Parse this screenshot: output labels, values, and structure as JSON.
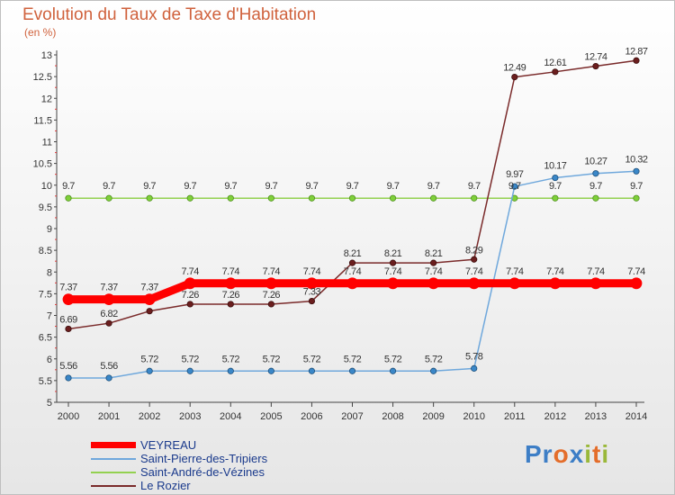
{
  "title": "Evolution du Taux de Taxe d'Habitation",
  "unit_label": "(en %)",
  "logo": {
    "parts": [
      {
        "text": "Pr",
        "color": "#3d7ec6"
      },
      {
        "text": "o",
        "color": "#e46d2a"
      },
      {
        "text": "x",
        "color": "#3d7ec6"
      },
      {
        "text": "i",
        "color": "#9ab83a"
      },
      {
        "text": "t",
        "color": "#e46d2a"
      },
      {
        "text": "i",
        "color": "#9ab83a"
      }
    ]
  },
  "chart_data": {
    "type": "line",
    "title": "Evolution du Taux de Taxe d'Habitation",
    "ylabel": "(en %)",
    "xlabel": "",
    "categories": [
      "2000",
      "2001",
      "2002",
      "2003",
      "2004",
      "2005",
      "2006",
      "2007",
      "2008",
      "2009",
      "2010",
      "2011",
      "2012",
      "2013",
      "2014"
    ],
    "ylim": [
      5,
      13
    ],
    "yticks": [
      "5",
      "5.5",
      "6",
      "6.5",
      "7",
      "7.5",
      "8",
      "8.5",
      "9",
      "9.5",
      "10",
      "10.5",
      "11",
      "11.5",
      "12",
      "12.5",
      "13"
    ],
    "grid": false,
    "legend_position": "bottom-left",
    "series": [
      {
        "name": "VEYREAU",
        "color": "#ff0000",
        "values": [
          7.37,
          7.37,
          7.37,
          7.74,
          7.74,
          7.74,
          7.74,
          7.74,
          7.74,
          7.74,
          7.74,
          7.74,
          7.74,
          7.74,
          7.74
        ]
      },
      {
        "name": "Saint-Pierre-des-Tripiers",
        "color": "#6fa8dc",
        "values": [
          5.56,
          5.56,
          5.72,
          5.72,
          5.72,
          5.72,
          5.72,
          5.72,
          5.72,
          5.72,
          5.78,
          9.97,
          10.17,
          10.27,
          10.32
        ]
      },
      {
        "name": "Saint-André-de-Vézines",
        "color": "#93d150",
        "values": [
          9.7,
          9.7,
          9.7,
          9.7,
          9.7,
          9.7,
          9.7,
          9.7,
          9.7,
          9.7,
          9.7,
          9.7,
          9.7,
          9.7,
          9.7
        ]
      },
      {
        "name": "Le Rozier",
        "color": "#7a2a2a",
        "values": [
          6.69,
          6.82,
          7.1,
          7.26,
          7.26,
          7.26,
          7.33,
          8.21,
          8.21,
          8.21,
          8.29,
          12.49,
          12.61,
          12.74,
          12.87
        ]
      }
    ],
    "data_labels": [
      [
        "7.37",
        "7.37",
        "7.37",
        "7.74",
        "7.74",
        "7.74",
        "7.74",
        "7.74",
        "7.74",
        "7.74",
        "7.74",
        "7.74",
        "7.74",
        "7.74",
        "7.74"
      ],
      [
        "5.56",
        "5.56",
        "5.72",
        "5.72",
        "5.72",
        "5.72",
        "5.72",
        "5.72",
        "5.72",
        "5.72",
        "5.78",
        "9.97",
        "10.17",
        "10.27",
        "10.32"
      ],
      [
        "9.7",
        "9.7",
        "9.7",
        "9.7",
        "9.7",
        "9.7",
        "9.7",
        "9.7",
        "9.7",
        "9.7",
        "9.7",
        "9.7",
        "9.7",
        "9.7",
        "9.7"
      ],
      [
        "6.69",
        "6.82",
        "",
        "7.26",
        "7.26",
        "7.26",
        "7.33",
        "8.21",
        "8.21",
        "8.21",
        "8.29",
        "12.49",
        "12.61",
        "12.74",
        "12.87"
      ]
    ]
  }
}
